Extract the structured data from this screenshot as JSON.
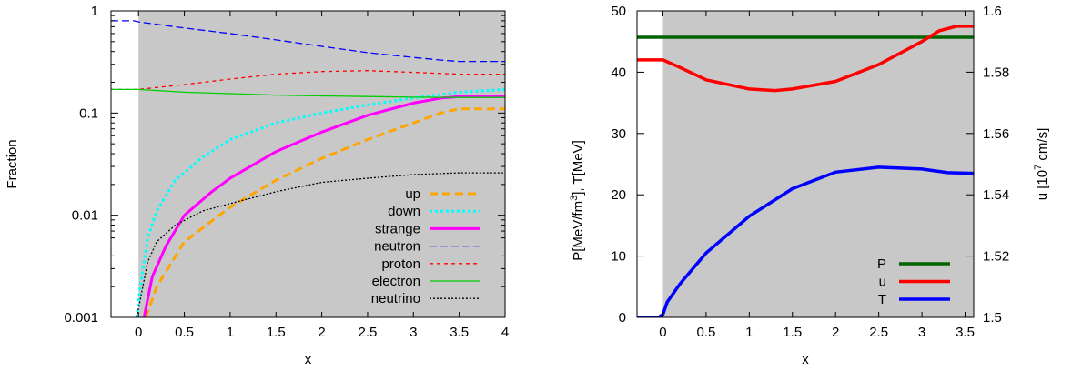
{
  "chart_data": [
    {
      "type": "line",
      "title": "",
      "xlabel": "x",
      "ylabel": "Fraction",
      "xlim": [
        -0.3,
        4
      ],
      "ylim": [
        0.001,
        1
      ],
      "yscale": "log",
      "x_ticks": [
        "0",
        "0.5",
        "1",
        "1.5",
        "2",
        "2.5",
        "3",
        "3.5",
        "4"
      ],
      "y_ticks": [
        "0.001",
        "0.01",
        "0.1",
        "1"
      ],
      "shaded_region": {
        "from_x": 0,
        "color": "#c8c8c8"
      },
      "legend_position": "bottom-right",
      "series": [
        {
          "name": "up",
          "color": "#ffa500",
          "style": "dashed-thick",
          "x": [
            0.08,
            0.2,
            0.5,
            1,
            1.5,
            2,
            2.5,
            3,
            3.3,
            3.5,
            4
          ],
          "y": [
            0.001,
            0.002,
            0.0055,
            0.012,
            0.022,
            0.036,
            0.055,
            0.08,
            0.1,
            0.11,
            0.11
          ]
        },
        {
          "name": "down",
          "color": "#00ffff",
          "style": "dotted-thick",
          "x": [
            -0.02,
            0.02,
            0.1,
            0.2,
            0.4,
            0.7,
            1,
            1.5,
            2,
            2.5,
            3,
            3.5,
            4
          ],
          "y": [
            0.001,
            0.002,
            0.006,
            0.011,
            0.022,
            0.037,
            0.055,
            0.08,
            0.1,
            0.12,
            0.14,
            0.16,
            0.17
          ]
        },
        {
          "name": "strange",
          "color": "#ff00ff",
          "style": "solid-thick",
          "x": [
            0.06,
            0.15,
            0.3,
            0.5,
            0.8,
            1,
            1.5,
            2,
            2.5,
            3,
            3.3,
            3.5,
            4
          ],
          "y": [
            0.001,
            0.0025,
            0.005,
            0.01,
            0.017,
            0.023,
            0.042,
            0.065,
            0.095,
            0.125,
            0.14,
            0.145,
            0.145
          ]
        },
        {
          "name": "neutron",
          "color": "#0000ff",
          "style": "dashed",
          "x": [
            -0.3,
            -0.05,
            0,
            0.5,
            1,
            1.5,
            2,
            2.5,
            3,
            3.3,
            3.5,
            4
          ],
          "y": [
            0.8,
            0.8,
            0.78,
            0.68,
            0.6,
            0.52,
            0.45,
            0.39,
            0.35,
            0.33,
            0.32,
            0.32
          ]
        },
        {
          "name": "proton",
          "color": "#ff0000",
          "style": "dashed-short",
          "x": [
            -0.3,
            0,
            0.5,
            1,
            1.5,
            2,
            2.5,
            3,
            3.5,
            4
          ],
          "y": [
            0.17,
            0.17,
            0.19,
            0.215,
            0.24,
            0.255,
            0.26,
            0.25,
            0.24,
            0.24
          ]
        },
        {
          "name": "electron",
          "color": "#00cc00",
          "style": "solid",
          "x": [
            -0.3,
            0,
            0.5,
            1,
            1.5,
            2,
            2.5,
            3,
            3.5,
            4
          ],
          "y": [
            0.17,
            0.17,
            0.16,
            0.155,
            0.15,
            0.147,
            0.145,
            0.143,
            0.142,
            0.142
          ]
        },
        {
          "name": "neutrino",
          "color": "#000000",
          "style": "dotted",
          "x": [
            -0.02,
            0.02,
            0.1,
            0.2,
            0.4,
            0.7,
            1,
            1.5,
            2,
            2.5,
            3,
            3.5,
            4
          ],
          "y": [
            0.001,
            0.0015,
            0.0035,
            0.0055,
            0.008,
            0.011,
            0.013,
            0.017,
            0.021,
            0.023,
            0.025,
            0.026,
            0.026
          ]
        }
      ]
    },
    {
      "type": "line",
      "title": "",
      "xlabel": "x",
      "ylabel_left": "P[MeV/fm3],    T[MeV]",
      "ylabel_left_parts": {
        "a": "P[MeV/fm",
        "sup": "3",
        "b": "],    T[MeV]"
      },
      "ylabel_right": "u [10^7 cm/s]",
      "ylabel_right_parts": {
        "a": "u [10",
        "sup": "7",
        "b": " cm/s]"
      },
      "xlim": [
        -0.3,
        3.6
      ],
      "ylim_left": [
        0,
        50
      ],
      "ylim_right": [
        1.5,
        1.6
      ],
      "x_ticks": [
        "0",
        "0.5",
        "1",
        "1.5",
        "2",
        "2.5",
        "3",
        "3.5"
      ],
      "y_ticks_left": [
        "0",
        "10",
        "20",
        "30",
        "40",
        "50"
      ],
      "y_ticks_right": [
        "1.5",
        "1.52",
        "1.54",
        "1.56",
        "1.58",
        "1.6"
      ],
      "shaded_region": {
        "from_x": 0,
        "color": "#c8c8c8"
      },
      "legend_position": "bottom-right",
      "series": [
        {
          "name": "P",
          "color": "#006400",
          "axis": "left",
          "x": [
            -0.3,
            3.6
          ],
          "y": [
            45.7,
            45.7
          ]
        },
        {
          "name": "u",
          "color": "#ff0000",
          "axis": "right",
          "x": [
            -0.3,
            0,
            0.2,
            0.5,
            1,
            1.3,
            1.5,
            2,
            2.5,
            3,
            3.2,
            3.4,
            3.6
          ],
          "y": [
            1.584,
            1.584,
            1.5815,
            1.5775,
            1.5745,
            1.574,
            1.5745,
            1.577,
            1.5825,
            1.59,
            1.5935,
            1.595,
            1.595
          ]
        },
        {
          "name": "T",
          "color": "#0000ff",
          "axis": "left",
          "x": [
            -0.3,
            -0.05,
            0,
            0.05,
            0.2,
            0.5,
            1,
            1.5,
            2,
            2.5,
            3,
            3.3,
            3.6
          ],
          "y": [
            0,
            0,
            0.5,
            2.5,
            5.5,
            10.5,
            16.5,
            21,
            23.7,
            24.5,
            24.2,
            23.6,
            23.5
          ]
        }
      ]
    }
  ]
}
